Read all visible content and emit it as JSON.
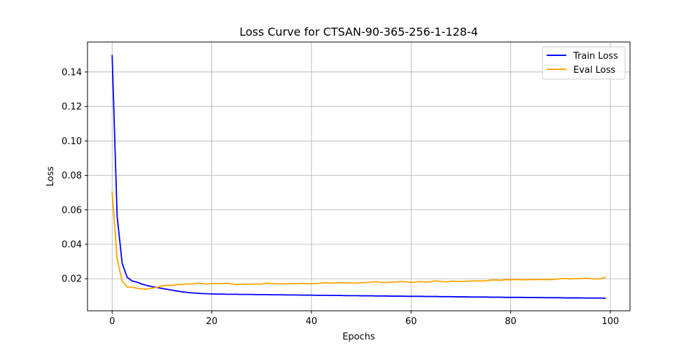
{
  "chart_data": {
    "type": "line",
    "title": "Loss Curve for CTSAN-90-365-256-1-128-4",
    "xlabel": "Epochs",
    "ylabel": "Loss",
    "xlim": [
      -4.95,
      103.95
    ],
    "ylim": [
      0.0014,
      0.1574
    ],
    "xticks": [
      0,
      20,
      40,
      60,
      80,
      100
    ],
    "yticks": [
      0.02,
      0.04,
      0.06,
      0.08,
      0.1,
      0.12,
      0.14
    ],
    "ytick_labels": [
      "0.02",
      "0.04",
      "0.06",
      "0.08",
      "0.10",
      "0.12",
      "0.14"
    ],
    "grid": true,
    "legend_position": "top-right",
    "colors": {
      "train": "#0000ff",
      "eval": "#ffa500"
    },
    "series": [
      {
        "name": "Train Loss",
        "color": "#0000ff",
        "x_start": 0,
        "x_step": 1,
        "values": [
          0.1496,
          0.0563,
          0.0291,
          0.0209,
          0.0187,
          0.018,
          0.0169,
          0.0161,
          0.0154,
          0.0149,
          0.0144,
          0.0139,
          0.0134,
          0.0129,
          0.0124,
          0.0121,
          0.0118,
          0.0116,
          0.0114,
          0.0113,
          0.0112,
          0.0111,
          0.0111,
          0.011,
          0.011,
          0.011,
          0.0109,
          0.0109,
          0.0109,
          0.0108,
          0.0108,
          0.0108,
          0.0107,
          0.0107,
          0.0107,
          0.0106,
          0.0106,
          0.0106,
          0.0105,
          0.0105,
          0.0105,
          0.0104,
          0.0104,
          0.0104,
          0.0103,
          0.0103,
          0.0103,
          0.0102,
          0.0102,
          0.0102,
          0.0101,
          0.0101,
          0.0101,
          0.01,
          0.01,
          0.01,
          0.0099,
          0.0099,
          0.0099,
          0.0098,
          0.0098,
          0.0098,
          0.0098,
          0.0097,
          0.0097,
          0.0097,
          0.0096,
          0.0096,
          0.0096,
          0.0095,
          0.0095,
          0.0095,
          0.0094,
          0.0094,
          0.0094,
          0.0094,
          0.0093,
          0.0093,
          0.0093,
          0.0092,
          0.0092,
          0.0092,
          0.0092,
          0.0091,
          0.0091,
          0.0091,
          0.0091,
          0.009,
          0.009,
          0.009,
          0.009,
          0.0089,
          0.0089,
          0.0089,
          0.0089,
          0.0088,
          0.0088,
          0.0088,
          0.0088,
          0.0087
        ]
      },
      {
        "name": "Eval Loss",
        "color": "#ffa500",
        "x_start": 0,
        "x_step": 1,
        "values": [
          0.0706,
          0.0315,
          0.0186,
          0.0153,
          0.015,
          0.0145,
          0.0141,
          0.014,
          0.0145,
          0.015,
          0.0158,
          0.0162,
          0.0161,
          0.0166,
          0.0166,
          0.017,
          0.0169,
          0.0175,
          0.0172,
          0.0169,
          0.0172,
          0.0172,
          0.0171,
          0.0175,
          0.017,
          0.0166,
          0.0169,
          0.0168,
          0.0168,
          0.0171,
          0.0168,
          0.0175,
          0.0172,
          0.0171,
          0.0171,
          0.017,
          0.0172,
          0.0171,
          0.0173,
          0.0171,
          0.0171,
          0.0173,
          0.0175,
          0.0178,
          0.0174,
          0.0177,
          0.0177,
          0.0177,
          0.0175,
          0.0175,
          0.0177,
          0.0178,
          0.018,
          0.0183,
          0.0179,
          0.0178,
          0.018,
          0.0181,
          0.0184,
          0.0182,
          0.0179,
          0.0181,
          0.0184,
          0.018,
          0.0183,
          0.0188,
          0.0184,
          0.0181,
          0.0186,
          0.0185,
          0.0184,
          0.0185,
          0.0187,
          0.0188,
          0.0187,
          0.0188,
          0.0192,
          0.0193,
          0.0191,
          0.0195,
          0.0194,
          0.0195,
          0.0195,
          0.0194,
          0.0195,
          0.0195,
          0.0196,
          0.0195,
          0.0195,
          0.0197,
          0.0201,
          0.0202,
          0.0199,
          0.0201,
          0.0201,
          0.0204,
          0.0201,
          0.0198,
          0.02,
          0.0209
        ]
      }
    ]
  }
}
